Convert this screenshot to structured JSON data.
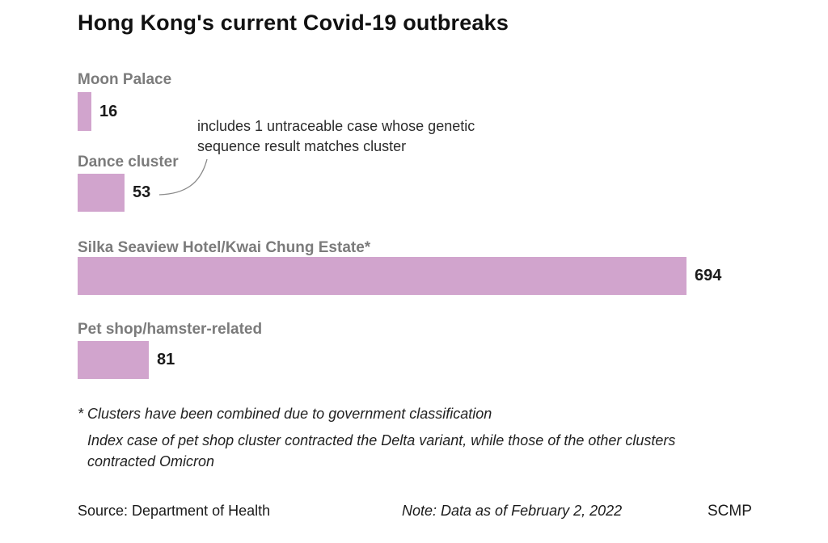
{
  "title": "Hong Kong's current Covid-19 outbreaks",
  "colors": {
    "bar_fill": "#d1a4cd",
    "category_label": "#7b7b7b",
    "title_text": "#111111",
    "value_text": "#1a1a1a",
    "connector_line": "#8a8a8a"
  },
  "chart_data": {
    "type": "bar",
    "orientation": "horizontal",
    "title": "Hong Kong's current Covid-19 outbreaks",
    "categories": [
      "Moon Palace",
      "Dance cluster",
      "Silka Seaview Hotel/Kwai Chung Estate*",
      "Pet shop/hamster-related"
    ],
    "values": [
      16,
      53,
      694,
      81
    ],
    "xlim": [
      0,
      694
    ],
    "grid": false,
    "legend": false,
    "bar_color": "#d1a4cd",
    "annotation": {
      "target_category": "Dance cluster",
      "target_value": 53,
      "text": "includes 1 untraceable case whose genetic sequence result matches cluster"
    }
  },
  "annotation": {
    "text": "includes 1 untraceable case whose genetic sequence result matches cluster"
  },
  "footnotes": {
    "asterisk": "* Clusters have been combined due to government classification",
    "variant": "Index case of pet shop cluster contracted the Delta variant, while those of the other clusters contracted Omicron"
  },
  "footer": {
    "source": "Source: Department of Health",
    "note": "Note: Data as of February 2, 2022",
    "brand": "SCMP"
  }
}
